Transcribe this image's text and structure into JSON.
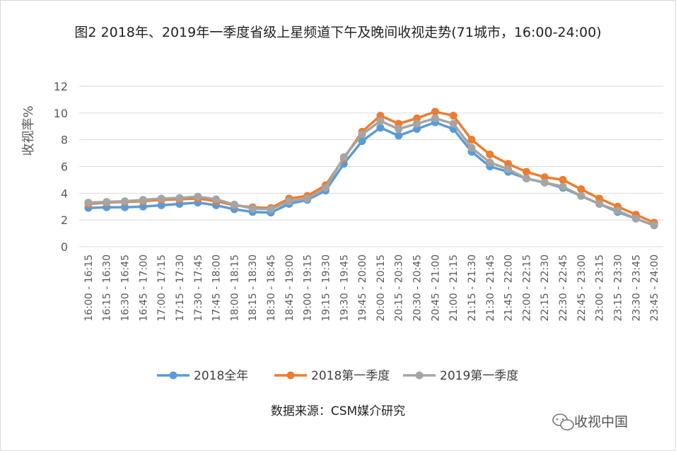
{
  "chart_data": {
    "type": "line",
    "title": "图2  2018年、2019年一季度省级上星频道下午及晚间收视走势(71城市，16:00-24:00)",
    "xlabel": "",
    "ylabel": "收视率%",
    "ylim": [
      0,
      12
    ],
    "yticks": [
      0,
      2,
      4,
      6,
      8,
      10,
      12
    ],
    "grid": true,
    "legend_position": "bottom",
    "categories": [
      "16:00 - 16:15",
      "16:15 - 16:30",
      "16:30 - 16:45",
      "16:45 - 17:00",
      "17:00 - 17:15",
      "17:15 - 17:30",
      "17:30 - 17:45",
      "17:45 - 18:00",
      "18:00 - 18:15",
      "18:15 - 18:30",
      "18:30 - 18:45",
      "18:45 - 19:00",
      "19:00 - 19:15",
      "19:15 - 19:30",
      "19:30 - 19:45",
      "19:45 - 20:00",
      "20:00 - 20:15",
      "20:15 - 20:30",
      "20:30 - 20:45",
      "20:45 - 21:00",
      "21:00 - 21:15",
      "21:15 - 21:30",
      "21:30 - 21:45",
      "21:45 - 22:00",
      "22:00 - 22:15",
      "22:15 - 22:30",
      "22:30 - 22:45",
      "22:45 - 23:00",
      "23:00 - 23:15",
      "23:15 - 23:30",
      "23:30 - 23:45",
      "23:45 - 24:00"
    ],
    "series": [
      {
        "name": "2018全年",
        "color": "#5b9bd5",
        "values": [
          2.9,
          2.95,
          2.95,
          3.0,
          3.1,
          3.2,
          3.3,
          3.1,
          2.8,
          2.6,
          2.55,
          3.2,
          3.5,
          4.2,
          6.2,
          7.9,
          8.9,
          8.3,
          8.8,
          9.3,
          8.8,
          7.1,
          6.0,
          5.6,
          5.1,
          4.8,
          4.4,
          3.8,
          3.2,
          2.6,
          2.1,
          1.6
        ]
      },
      {
        "name": "2018第一季度",
        "color": "#ed7d31",
        "values": [
          3.2,
          3.3,
          3.35,
          3.4,
          3.5,
          3.55,
          3.6,
          3.4,
          3.1,
          2.95,
          2.9,
          3.6,
          3.8,
          4.6,
          6.6,
          8.6,
          9.8,
          9.2,
          9.6,
          10.1,
          9.8,
          8.0,
          6.9,
          6.2,
          5.6,
          5.2,
          5.0,
          4.3,
          3.6,
          3.0,
          2.4,
          1.8
        ]
      },
      {
        "name": "2019第一季度",
        "color": "#a5a5a5",
        "values": [
          3.3,
          3.35,
          3.4,
          3.5,
          3.6,
          3.65,
          3.75,
          3.55,
          3.15,
          2.85,
          2.8,
          3.4,
          3.6,
          4.4,
          6.7,
          8.4,
          9.4,
          8.8,
          9.2,
          9.6,
          9.2,
          7.4,
          6.3,
          5.8,
          5.1,
          4.8,
          4.5,
          3.8,
          3.2,
          2.7,
          2.1,
          1.6
        ]
      }
    ]
  },
  "source": "数据来源：CSM媒介研究",
  "watermark": {
    "text": "收视中国",
    "icon": "wechat-icon"
  }
}
